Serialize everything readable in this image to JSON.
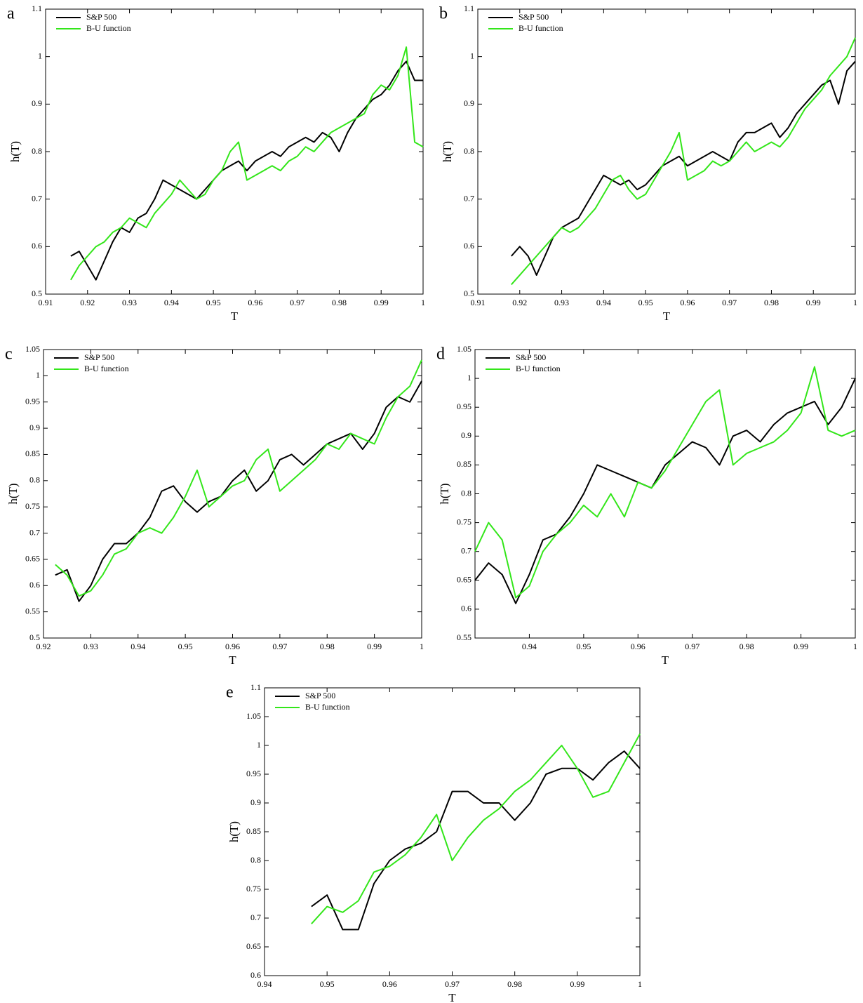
{
  "chart_data": [
    {
      "type": "line",
      "label": "a",
      "xlabel": "T",
      "ylabel": "h(T)",
      "x": [
        0.916,
        0.918,
        0.92,
        0.922,
        0.924,
        0.926,
        0.928,
        0.93,
        0.932,
        0.934,
        0.936,
        0.938,
        0.94,
        0.942,
        0.944,
        0.946,
        0.948,
        0.95,
        0.952,
        0.954,
        0.956,
        0.958,
        0.96,
        0.962,
        0.964,
        0.966,
        0.968,
        0.97,
        0.972,
        0.974,
        0.976,
        0.978,
        0.98,
        0.982,
        0.984,
        0.986,
        0.988,
        0.99,
        0.992,
        0.994,
        0.996,
        0.998,
        1.0
      ],
      "series": [
        {
          "name": "S&P 500",
          "color": "#000000",
          "values": [
            0.58,
            0.59,
            0.56,
            0.53,
            0.57,
            0.61,
            0.64,
            0.63,
            0.66,
            0.67,
            0.7,
            0.74,
            0.73,
            0.72,
            0.71,
            0.7,
            0.72,
            0.74,
            0.76,
            0.77,
            0.78,
            0.76,
            0.78,
            0.79,
            0.8,
            0.79,
            0.81,
            0.82,
            0.83,
            0.82,
            0.84,
            0.83,
            0.8,
            0.84,
            0.87,
            0.89,
            0.91,
            0.92,
            0.94,
            0.97,
            0.99,
            0.95,
            0.95
          ]
        },
        {
          "name": "B-U function",
          "color": "#33e61a",
          "values": [
            0.53,
            0.56,
            0.58,
            0.6,
            0.61,
            0.63,
            0.64,
            0.66,
            0.65,
            0.64,
            0.67,
            0.69,
            0.71,
            0.74,
            0.72,
            0.7,
            0.71,
            0.74,
            0.76,
            0.8,
            0.82,
            0.74,
            0.75,
            0.76,
            0.77,
            0.76,
            0.78,
            0.79,
            0.81,
            0.8,
            0.82,
            0.84,
            0.85,
            0.86,
            0.87,
            0.88,
            0.92,
            0.94,
            0.93,
            0.96,
            1.02,
            0.82,
            0.81
          ]
        }
      ],
      "xlim": [
        0.91,
        1
      ],
      "ylim": [
        0.5,
        1.1
      ],
      "xticks": [
        0.91,
        0.92,
        0.93,
        0.94,
        0.95,
        0.96,
        0.97,
        0.98,
        0.99,
        1
      ],
      "yticks": [
        0.5,
        0.6,
        0.7,
        0.8,
        0.9,
        1,
        1.1
      ],
      "legend": "upper left"
    },
    {
      "type": "line",
      "label": "b",
      "xlabel": "T",
      "ylabel": "h(T)",
      "x": [
        0.918,
        0.92,
        0.922,
        0.924,
        0.926,
        0.928,
        0.93,
        0.932,
        0.934,
        0.936,
        0.938,
        0.94,
        0.942,
        0.944,
        0.946,
        0.948,
        0.95,
        0.952,
        0.954,
        0.956,
        0.958,
        0.96,
        0.962,
        0.964,
        0.966,
        0.968,
        0.97,
        0.972,
        0.974,
        0.976,
        0.978,
        0.98,
        0.982,
        0.984,
        0.986,
        0.988,
        0.99,
        0.992,
        0.994,
        0.996,
        0.998,
        1.0
      ],
      "series": [
        {
          "name": "S&P 500",
          "color": "#000000",
          "values": [
            0.58,
            0.6,
            0.58,
            0.54,
            0.58,
            0.62,
            0.64,
            0.65,
            0.66,
            0.69,
            0.72,
            0.75,
            0.74,
            0.73,
            0.74,
            0.72,
            0.73,
            0.75,
            0.77,
            0.78,
            0.79,
            0.77,
            0.78,
            0.79,
            0.8,
            0.79,
            0.78,
            0.82,
            0.84,
            0.84,
            0.85,
            0.86,
            0.83,
            0.85,
            0.88,
            0.9,
            0.92,
            0.94,
            0.95,
            0.9,
            0.97,
            0.99
          ]
        },
        {
          "name": "B-U function",
          "color": "#33e61a",
          "values": [
            0.52,
            0.54,
            0.56,
            0.58,
            0.6,
            0.62,
            0.64,
            0.63,
            0.64,
            0.66,
            0.68,
            0.71,
            0.74,
            0.75,
            0.72,
            0.7,
            0.71,
            0.74,
            0.77,
            0.8,
            0.84,
            0.74,
            0.75,
            0.76,
            0.78,
            0.77,
            0.78,
            0.8,
            0.82,
            0.8,
            0.81,
            0.82,
            0.81,
            0.83,
            0.86,
            0.89,
            0.91,
            0.93,
            0.96,
            0.98,
            1.0,
            1.04
          ]
        }
      ],
      "xlim": [
        0.91,
        1
      ],
      "ylim": [
        0.5,
        1.1
      ],
      "xticks": [
        0.91,
        0.92,
        0.93,
        0.94,
        0.95,
        0.96,
        0.97,
        0.98,
        0.99,
        1
      ],
      "yticks": [
        0.5,
        0.6,
        0.7,
        0.8,
        0.9,
        1,
        1.1
      ],
      "legend": "upper left"
    },
    {
      "type": "line",
      "label": "c",
      "xlabel": "T",
      "ylabel": "h(T)",
      "x": [
        0.9225,
        0.925,
        0.9275,
        0.93,
        0.9325,
        0.935,
        0.9375,
        0.94,
        0.9425,
        0.945,
        0.9475,
        0.95,
        0.9525,
        0.955,
        0.9575,
        0.96,
        0.9625,
        0.965,
        0.9675,
        0.97,
        0.9725,
        0.975,
        0.9775,
        0.98,
        0.9825,
        0.985,
        0.9875,
        0.99,
        0.9925,
        0.995,
        0.9975,
        1.0
      ],
      "series": [
        {
          "name": "S&P 500",
          "color": "#000000",
          "values": [
            0.62,
            0.63,
            0.57,
            0.6,
            0.65,
            0.68,
            0.68,
            0.7,
            0.73,
            0.78,
            0.79,
            0.76,
            0.74,
            0.76,
            0.77,
            0.8,
            0.82,
            0.78,
            0.8,
            0.84,
            0.85,
            0.83,
            0.85,
            0.87,
            0.88,
            0.89,
            0.86,
            0.89,
            0.94,
            0.96,
            0.95,
            0.99
          ]
        },
        {
          "name": "B-U function",
          "color": "#33e61a",
          "values": [
            0.64,
            0.62,
            0.58,
            0.59,
            0.62,
            0.66,
            0.67,
            0.7,
            0.71,
            0.7,
            0.73,
            0.77,
            0.82,
            0.75,
            0.77,
            0.79,
            0.8,
            0.84,
            0.86,
            0.78,
            0.8,
            0.82,
            0.84,
            0.87,
            0.86,
            0.89,
            0.88,
            0.87,
            0.92,
            0.96,
            0.98,
            1.03
          ]
        }
      ],
      "xlim": [
        0.92,
        1
      ],
      "ylim": [
        0.5,
        1.05
      ],
      "xticks": [
        0.92,
        0.93,
        0.94,
        0.95,
        0.96,
        0.97,
        0.98,
        0.99,
        1
      ],
      "yticks": [
        0.5,
        0.55,
        0.6,
        0.65,
        0.7,
        0.75,
        0.8,
        0.85,
        0.9,
        0.95,
        1,
        1.05
      ],
      "legend": "upper left"
    },
    {
      "type": "line",
      "label": "d",
      "xlabel": "T",
      "ylabel": "h(T)",
      "x": [
        0.93,
        0.9325,
        0.935,
        0.9375,
        0.94,
        0.9425,
        0.945,
        0.9475,
        0.95,
        0.9525,
        0.955,
        0.9575,
        0.96,
        0.9625,
        0.965,
        0.9675,
        0.97,
        0.9725,
        0.975,
        0.9775,
        0.98,
        0.9825,
        0.985,
        0.9875,
        0.99,
        0.9925,
        0.995,
        0.9975,
        1.0
      ],
      "series": [
        {
          "name": "S&P 500",
          "color": "#000000",
          "values": [
            0.65,
            0.68,
            0.66,
            0.61,
            0.66,
            0.72,
            0.73,
            0.76,
            0.8,
            0.85,
            0.84,
            0.83,
            0.82,
            0.81,
            0.85,
            0.87,
            0.89,
            0.88,
            0.85,
            0.9,
            0.91,
            0.89,
            0.92,
            0.94,
            0.95,
            0.96,
            0.92,
            0.95,
            1.0
          ]
        },
        {
          "name": "B-U function",
          "color": "#33e61a",
          "values": [
            0.7,
            0.75,
            0.72,
            0.62,
            0.64,
            0.7,
            0.73,
            0.75,
            0.78,
            0.76,
            0.8,
            0.76,
            0.82,
            0.81,
            0.84,
            0.88,
            0.92,
            0.96,
            0.98,
            0.85,
            0.87,
            0.88,
            0.89,
            0.91,
            0.94,
            1.02,
            0.91,
            0.9,
            0.91
          ]
        }
      ],
      "xlim": [
        0.93,
        1
      ],
      "ylim": [
        0.55,
        1.05
      ],
      "xticks": [
        0.94,
        0.95,
        0.96,
        0.97,
        0.98,
        0.99,
        1
      ],
      "yticks": [
        0.55,
        0.6,
        0.65,
        0.7,
        0.75,
        0.8,
        0.85,
        0.9,
        0.95,
        1,
        1.05
      ],
      "legend": "upper left"
    },
    {
      "type": "line",
      "label": "e",
      "xlabel": "T",
      "ylabel": "h(T)",
      "x": [
        0.9475,
        0.95,
        0.9525,
        0.955,
        0.9575,
        0.96,
        0.9625,
        0.965,
        0.9675,
        0.97,
        0.9725,
        0.975,
        0.9775,
        0.98,
        0.9825,
        0.985,
        0.9875,
        0.99,
        0.9925,
        0.995,
        0.9975,
        1.0
      ],
      "series": [
        {
          "name": "S&P 500",
          "color": "#000000",
          "values": [
            0.72,
            0.74,
            0.68,
            0.68,
            0.76,
            0.8,
            0.82,
            0.83,
            0.85,
            0.92,
            0.92,
            0.9,
            0.9,
            0.87,
            0.9,
            0.95,
            0.96,
            0.96,
            0.94,
            0.97,
            0.99,
            0.96
          ]
        },
        {
          "name": "B-U function",
          "color": "#33e61a",
          "values": [
            0.69,
            0.72,
            0.71,
            0.73,
            0.78,
            0.79,
            0.81,
            0.84,
            0.88,
            0.8,
            0.84,
            0.87,
            0.89,
            0.92,
            0.94,
            0.97,
            1.0,
            0.96,
            0.91,
            0.92,
            0.97,
            1.02
          ]
        }
      ],
      "xlim": [
        0.94,
        1
      ],
      "ylim": [
        0.6,
        1.1
      ],
      "xticks": [
        0.94,
        0.95,
        0.96,
        0.97,
        0.98,
        0.99,
        1
      ],
      "yticks": [
        0.6,
        0.65,
        0.7,
        0.75,
        0.8,
        0.85,
        0.9,
        0.95,
        1,
        1.05,
        1.1
      ],
      "legend": "upper left"
    }
  ]
}
